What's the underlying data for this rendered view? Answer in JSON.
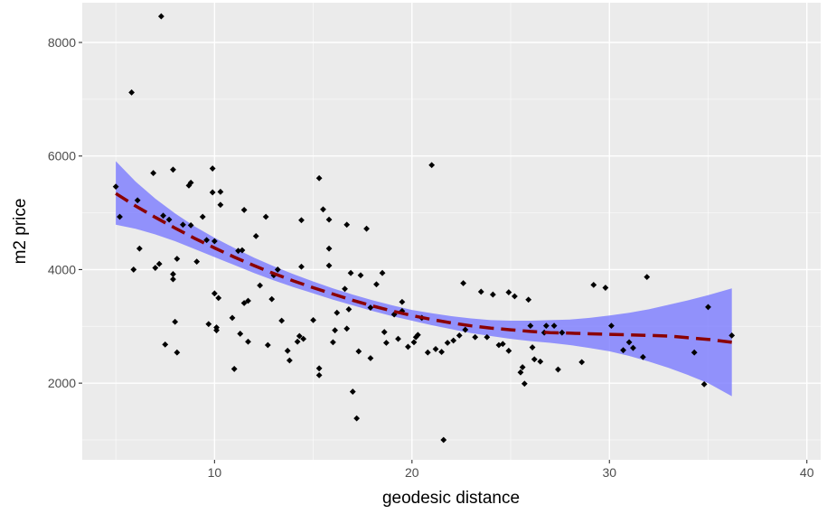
{
  "chart_data": {
    "type": "scatter",
    "title": "",
    "xlabel": "geodesic distance",
    "ylabel": "m2 price",
    "xlim": [
      3.3,
      40.7
    ],
    "ylim": [
      650,
      8700
    ],
    "x_ticks": [
      10,
      20,
      30,
      40
    ],
    "y_ticks": [
      2000,
      4000,
      6000,
      8000
    ],
    "x_tick_labels": [
      "10",
      "20",
      "30",
      "40"
    ],
    "y_tick_labels": [
      "2000",
      "4000",
      "6000",
      "8000"
    ],
    "grid": true,
    "legend": "none",
    "colors": {
      "panel_background": "#ebebeb",
      "grid_major": "#ffffff",
      "points": "#000000",
      "fit_line": "#8b0000",
      "confidence_band": "#7b7bff"
    },
    "points": [
      [
        5.0,
        5460
      ],
      [
        5.2,
        4930
      ],
      [
        5.8,
        7120
      ],
      [
        5.9,
        4000
      ],
      [
        6.1,
        5220
      ],
      [
        6.2,
        4370
      ],
      [
        6.9,
        5700
      ],
      [
        7.0,
        4030
      ],
      [
        7.2,
        4100
      ],
      [
        7.3,
        8460
      ],
      [
        7.4,
        4950
      ],
      [
        7.5,
        2680
      ],
      [
        7.7,
        4880
      ],
      [
        7.9,
        5760
      ],
      [
        7.9,
        3830
      ],
      [
        7.9,
        3920
      ],
      [
        8.0,
        3080
      ],
      [
        8.1,
        2540
      ],
      [
        8.1,
        4190
      ],
      [
        8.4,
        4790
      ],
      [
        8.7,
        5480
      ],
      [
        8.8,
        5530
      ],
      [
        8.8,
        4780
      ],
      [
        9.1,
        4140
      ],
      [
        9.4,
        4930
      ],
      [
        9.6,
        4520
      ],
      [
        9.7,
        3040
      ],
      [
        9.9,
        5780
      ],
      [
        9.9,
        5360
      ],
      [
        10.0,
        4500
      ],
      [
        10.0,
        3580
      ],
      [
        10.1,
        2930
      ],
      [
        10.1,
        2980
      ],
      [
        10.2,
        3500
      ],
      [
        10.3,
        5370
      ],
      [
        10.3,
        5140
      ],
      [
        10.9,
        3150
      ],
      [
        11.0,
        2250
      ],
      [
        11.2,
        4330
      ],
      [
        11.3,
        2870
      ],
      [
        11.4,
        4340
      ],
      [
        11.5,
        3410
      ],
      [
        11.5,
        5050
      ],
      [
        11.7,
        3450
      ],
      [
        11.7,
        2730
      ],
      [
        12.1,
        4590
      ],
      [
        12.3,
        3720
      ],
      [
        12.6,
        4930
      ],
      [
        12.7,
        2670
      ],
      [
        12.9,
        3480
      ],
      [
        13.0,
        3900
      ],
      [
        13.2,
        4000
      ],
      [
        13.4,
        3100
      ],
      [
        13.7,
        2570
      ],
      [
        13.8,
        2400
      ],
      [
        14.2,
        2730
      ],
      [
        14.3,
        2830
      ],
      [
        14.4,
        4870
      ],
      [
        14.4,
        4050
      ],
      [
        14.5,
        2780
      ],
      [
        15.0,
        3110
      ],
      [
        15.3,
        2260
      ],
      [
        15.3,
        2140
      ],
      [
        15.3,
        5610
      ],
      [
        15.5,
        5060
      ],
      [
        15.8,
        4880
      ],
      [
        15.8,
        4370
      ],
      [
        15.8,
        4070
      ],
      [
        16.0,
        2720
      ],
      [
        16.1,
        2930
      ],
      [
        16.2,
        3240
      ],
      [
        16.6,
        3660
      ],
      [
        16.7,
        4790
      ],
      [
        16.7,
        2960
      ],
      [
        16.8,
        3300
      ],
      [
        16.9,
        3940
      ],
      [
        17.0,
        1850
      ],
      [
        17.2,
        1380
      ],
      [
        17.3,
        2560
      ],
      [
        17.4,
        3900
      ],
      [
        17.7,
        4720
      ],
      [
        17.9,
        3330
      ],
      [
        17.9,
        2440
      ],
      [
        18.2,
        3740
      ],
      [
        18.5,
        3940
      ],
      [
        18.6,
        2900
      ],
      [
        18.7,
        2710
      ],
      [
        19.1,
        3210
      ],
      [
        19.3,
        2780
      ],
      [
        19.5,
        3270
      ],
      [
        19.5,
        3430
      ],
      [
        19.8,
        2640
      ],
      [
        20.1,
        2720
      ],
      [
        20.2,
        2810
      ],
      [
        20.3,
        2850
      ],
      [
        20.5,
        3150
      ],
      [
        20.8,
        2540
      ],
      [
        21.0,
        5840
      ],
      [
        21.2,
        2600
      ],
      [
        21.5,
        2550
      ],
      [
        21.6,
        1000
      ],
      [
        21.8,
        2710
      ],
      [
        22.1,
        2750
      ],
      [
        22.4,
        2840
      ],
      [
        22.6,
        3760
      ],
      [
        22.7,
        2940
      ],
      [
        23.2,
        2810
      ],
      [
        23.5,
        3610
      ],
      [
        23.8,
        2810
      ],
      [
        24.1,
        3560
      ],
      [
        24.4,
        2670
      ],
      [
        24.6,
        2690
      ],
      [
        24.9,
        2570
      ],
      [
        24.9,
        3600
      ],
      [
        25.2,
        3530
      ],
      [
        25.5,
        2190
      ],
      [
        25.6,
        2280
      ],
      [
        25.7,
        1990
      ],
      [
        25.9,
        3470
      ],
      [
        26.0,
        3010
      ],
      [
        26.1,
        2630
      ],
      [
        26.2,
        2420
      ],
      [
        26.5,
        2380
      ],
      [
        26.7,
        2890
      ],
      [
        26.8,
        3010
      ],
      [
        27.2,
        3010
      ],
      [
        27.4,
        2240
      ],
      [
        27.6,
        2890
      ],
      [
        28.6,
        2370
      ],
      [
        29.2,
        3730
      ],
      [
        29.8,
        3680
      ],
      [
        30.1,
        3010
      ],
      [
        30.7,
        2580
      ],
      [
        31.0,
        2720
      ],
      [
        31.2,
        2620
      ],
      [
        31.7,
        2460
      ],
      [
        31.9,
        3870
      ],
      [
        34.3,
        2540
      ],
      [
        34.8,
        1980
      ],
      [
        35.0,
        3340
      ],
      [
        36.2,
        2840
      ]
    ],
    "fit_line": {
      "x": [
        5,
        6,
        7,
        8,
        9,
        10,
        11,
        12,
        13,
        14,
        15,
        16,
        17,
        18,
        19,
        20,
        21,
        22,
        23,
        24,
        25,
        26,
        27,
        28,
        29,
        30,
        31,
        32,
        33,
        34,
        35,
        36.2
      ],
      "y": [
        5340,
        5120,
        4920,
        4730,
        4550,
        4380,
        4220,
        4070,
        3930,
        3800,
        3680,
        3570,
        3460,
        3360,
        3270,
        3190,
        3120,
        3060,
        3010,
        2970,
        2940,
        2910,
        2890,
        2880,
        2870,
        2860,
        2850,
        2840,
        2830,
        2800,
        2770,
        2720
      ]
    },
    "confidence_band": {
      "x": [
        5,
        6,
        7,
        8,
        9,
        10,
        11,
        12,
        13,
        14,
        15,
        16,
        17,
        18,
        19,
        20,
        21,
        22,
        23,
        24,
        25,
        26,
        27,
        28,
        29,
        30,
        31,
        32,
        33,
        34,
        35,
        36.2
      ],
      "upper": [
        5910,
        5550,
        5250,
        4990,
        4760,
        4560,
        4380,
        4210,
        4060,
        3920,
        3790,
        3670,
        3560,
        3460,
        3370,
        3290,
        3230,
        3180,
        3140,
        3110,
        3100,
        3100,
        3110,
        3120,
        3150,
        3190,
        3240,
        3300,
        3380,
        3460,
        3550,
        3670
      ],
      "lower": [
        4790,
        4720,
        4620,
        4500,
        4360,
        4220,
        4080,
        3940,
        3810,
        3690,
        3580,
        3470,
        3370,
        3270,
        3180,
        3100,
        3020,
        2950,
        2880,
        2830,
        2780,
        2740,
        2710,
        2670,
        2620,
        2560,
        2480,
        2380,
        2270,
        2140,
        2000,
        1770
      ]
    }
  }
}
